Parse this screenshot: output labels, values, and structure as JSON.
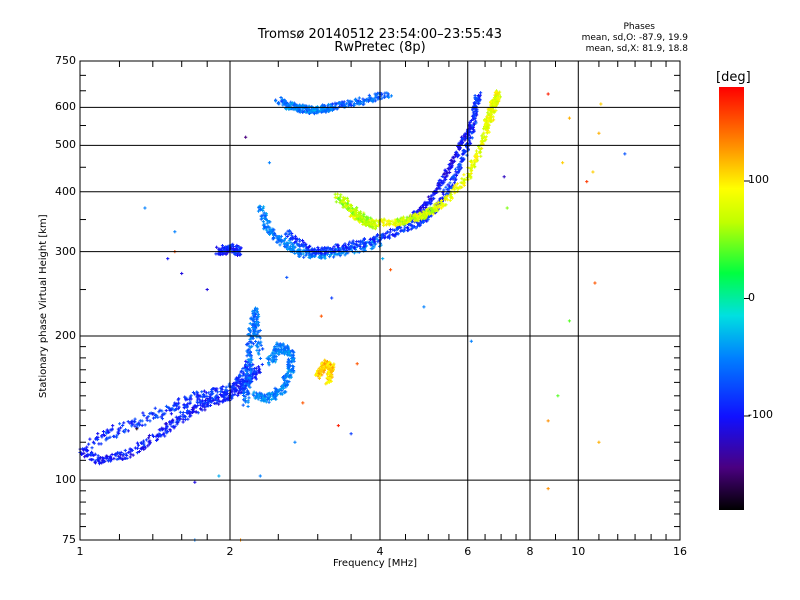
{
  "header": {
    "title_line1": "Tromsø 20140512 23:54:00–23:55:43",
    "title_line2": "RwPretec (8p)"
  },
  "phase_box": {
    "title": "Phases",
    "line_o": "mean, sd,O: -87.9, 19.9",
    "line_x": "mean, sd,X: 81.9, 18.8"
  },
  "colorbar": {
    "label": "[deg]",
    "ticks": [
      {
        "value": 100,
        "label": "100"
      },
      {
        "value": 0,
        "label": "0"
      },
      {
        "value": -100,
        "label": "-100"
      }
    ],
    "range": [
      -180,
      180
    ]
  },
  "chart_data": {
    "type": "scatter",
    "title": "Tromsø 20140512 23:54:00–23:55:43",
    "subtitle": "RwPretec (8p)",
    "xlabel": "Frequency [MHz]",
    "ylabel": "Stationary phase Virtual Height [km]",
    "x_scale": "log",
    "y_scale": "log",
    "xlim": [
      1,
      16
    ],
    "ylim": [
      75,
      750
    ],
    "grid": true,
    "x_ticks": [
      {
        "value": 1,
        "label": "1"
      },
      {
        "value": 2,
        "label": "2"
      },
      {
        "value": 4,
        "label": "4"
      },
      {
        "value": 6,
        "label": "6"
      },
      {
        "value": 8,
        "label": "8"
      },
      {
        "value": 10,
        "label": "10"
      },
      {
        "value": 16,
        "label": "16"
      }
    ],
    "y_ticks": [
      {
        "value": 75,
        "label": "75"
      },
      {
        "value": 100,
        "label": "100"
      },
      {
        "value": 200,
        "label": "200"
      },
      {
        "value": 300,
        "label": "300"
      },
      {
        "value": 400,
        "label": "400"
      },
      {
        "value": 500,
        "label": "500"
      },
      {
        "value": 600,
        "label": "600"
      },
      {
        "value": 750,
        "label": "750"
      }
    ],
    "color_by": "phase (deg)",
    "traces": [
      {
        "desc": "E/F1 low trace",
        "phase": -105,
        "spread": 0.03,
        "points": [
          [
            1.0,
            115
          ],
          [
            1.1,
            110
          ],
          [
            1.25,
            113
          ],
          [
            1.45,
            125
          ],
          [
            1.6,
            135
          ],
          [
            1.8,
            145
          ],
          [
            2.0,
            150
          ],
          [
            2.15,
            158
          ],
          [
            2.3,
            172
          ]
        ]
      },
      {
        "desc": "E/F1 upper band",
        "phase": -95,
        "spread": 0.04,
        "points": [
          [
            1.05,
            120
          ],
          [
            1.25,
            130
          ],
          [
            1.5,
            140
          ],
          [
            1.7,
            148
          ],
          [
            1.9,
            152
          ],
          [
            2.1,
            160
          ],
          [
            2.2,
            175
          ]
        ]
      },
      {
        "desc": "lower cusp column",
        "phase": -70,
        "spread": 0.03,
        "points": [
          [
            2.15,
            145
          ],
          [
            2.18,
            170
          ],
          [
            2.2,
            200
          ],
          [
            2.25,
            225
          ],
          [
            2.3,
            180
          ]
        ]
      },
      {
        "desc": "lower cusp hook",
        "phase": -60,
        "spread": 0.03,
        "points": [
          [
            2.25,
            150
          ],
          [
            2.4,
            148
          ],
          [
            2.55,
            155
          ],
          [
            2.65,
            170
          ],
          [
            2.65,
            185
          ],
          [
            2.5,
            190
          ],
          [
            2.4,
            175
          ]
        ]
      },
      {
        "desc": "lower X blob",
        "phase": 110,
        "spread": 0.025,
        "points": [
          [
            3.0,
            165
          ],
          [
            3.1,
            175
          ],
          [
            3.2,
            172
          ],
          [
            3.15,
            160
          ]
        ]
      },
      {
        "desc": "F2 O-trace lower arc",
        "phase": -60,
        "spread": 0.03,
        "points": [
          [
            2.3,
            370
          ],
          [
            2.4,
            330
          ],
          [
            2.6,
            310
          ],
          [
            2.8,
            298
          ],
          [
            3.1,
            296
          ],
          [
            3.5,
            302
          ],
          [
            4.0,
            315
          ]
        ]
      },
      {
        "desc": "F2 O-trace main",
        "phase": -95,
        "spread": 0.025,
        "points": [
          [
            2.6,
            330
          ],
          [
            2.9,
            300
          ],
          [
            3.3,
            305
          ],
          [
            3.8,
            315
          ],
          [
            4.3,
            330
          ],
          [
            4.8,
            345
          ],
          [
            5.2,
            370
          ],
          [
            5.6,
            420
          ],
          [
            6.0,
            500
          ],
          [
            6.2,
            580
          ],
          [
            6.3,
            640
          ]
        ]
      },
      {
        "desc": "F2 O-trace inner",
        "phase": -110,
        "spread": 0.02,
        "points": [
          [
            4.6,
            350
          ],
          [
            5.0,
            380
          ],
          [
            5.4,
            430
          ],
          [
            5.8,
            500
          ],
          [
            6.1,
            560
          ]
        ]
      },
      {
        "desc": "F2 cusp left",
        "phase": -100,
        "spread": 0.03,
        "points": [
          [
            1.9,
            300
          ],
          [
            2.0,
            305
          ],
          [
            2.1,
            300
          ]
        ]
      },
      {
        "desc": "F2 X-trace",
        "phase": 85,
        "spread": 0.025,
        "points": [
          [
            3.5,
            360
          ],
          [
            3.8,
            345
          ],
          [
            4.3,
            345
          ],
          [
            4.8,
            355
          ],
          [
            5.4,
            380
          ],
          [
            6.0,
            430
          ],
          [
            6.4,
            500
          ],
          [
            6.7,
            580
          ],
          [
            6.9,
            640
          ],
          [
            6.7,
            600
          ],
          [
            6.5,
            540
          ]
        ]
      },
      {
        "desc": "F2 X cusp",
        "phase": 60,
        "spread": 0.03,
        "points": [
          [
            3.3,
            390
          ],
          [
            3.5,
            370
          ],
          [
            3.7,
            350
          ],
          [
            3.9,
            340
          ]
        ]
      },
      {
        "desc": "F2 X lower",
        "phase": 70,
        "spread": 0.025,
        "points": [
          [
            4.3,
            345
          ],
          [
            4.8,
            355
          ],
          [
            5.2,
            370
          ]
        ]
      },
      {
        "desc": "top spread F",
        "phase": -75,
        "spread": 0.025,
        "points": [
          [
            2.5,
            620
          ],
          [
            2.7,
            600
          ],
          [
            3.0,
            590
          ],
          [
            3.3,
            605
          ],
          [
            3.7,
            620
          ],
          [
            4.2,
            640
          ]
        ]
      },
      {
        "desc": "top spread F2",
        "phase": -55,
        "spread": 0.025,
        "points": [
          [
            2.6,
            605
          ],
          [
            2.9,
            595
          ],
          [
            3.2,
            600
          ]
        ]
      }
    ],
    "scatter_points": [
      {
        "x": 1.35,
        "y": 370,
        "phase": -60
      },
      {
        "x": 1.55,
        "y": 330,
        "phase": -60
      },
      {
        "x": 1.5,
        "y": 290,
        "phase": -110
      },
      {
        "x": 1.6,
        "y": 270,
        "phase": -120
      },
      {
        "x": 1.55,
        "y": 300,
        "phase": 150
      },
      {
        "x": 1.8,
        "y": 250,
        "phase": -120
      },
      {
        "x": 2.15,
        "y": 520,
        "phase": -150
      },
      {
        "x": 2.4,
        "y": 460,
        "phase": -60
      },
      {
        "x": 2.6,
        "y": 265,
        "phase": -80
      },
      {
        "x": 3.05,
        "y": 220,
        "phase": 150
      },
      {
        "x": 3.2,
        "y": 240,
        "phase": -90
      },
      {
        "x": 3.6,
        "y": 175,
        "phase": 150
      },
      {
        "x": 4.2,
        "y": 275,
        "phase": 150
      },
      {
        "x": 4.05,
        "y": 290,
        "phase": -40
      },
      {
        "x": 4.9,
        "y": 230,
        "phase": -60
      },
      {
        "x": 6.1,
        "y": 195,
        "phase": -60
      },
      {
        "x": 7.2,
        "y": 370,
        "phase": 50
      },
      {
        "x": 7.1,
        "y": 430,
        "phase": -130
      },
      {
        "x": 8.7,
        "y": 640,
        "phase": 170
      },
      {
        "x": 9.3,
        "y": 460,
        "phase": 110
      },
      {
        "x": 9.6,
        "y": 570,
        "phase": 120
      },
      {
        "x": 11.1,
        "y": 610,
        "phase": 110
      },
      {
        "x": 11.0,
        "y": 530,
        "phase": 120
      },
      {
        "x": 10.4,
        "y": 420,
        "phase": 160
      },
      {
        "x": 10.7,
        "y": 440,
        "phase": 110
      },
      {
        "x": 12.4,
        "y": 480,
        "phase": -80
      },
      {
        "x": 9.6,
        "y": 215,
        "phase": 40
      },
      {
        "x": 10.8,
        "y": 258,
        "phase": 150
      },
      {
        "x": 8.7,
        "y": 133,
        "phase": 130
      },
      {
        "x": 11.0,
        "y": 120,
        "phase": 120
      },
      {
        "x": 8.7,
        "y": 96,
        "phase": 130
      },
      {
        "x": 9.1,
        "y": 150,
        "phase": 40
      },
      {
        "x": 2.3,
        "y": 102,
        "phase": -60
      },
      {
        "x": 1.7,
        "y": 99,
        "phase": -120
      },
      {
        "x": 1.3,
        "y": 128,
        "phase": -170
      },
      {
        "x": 1.9,
        "y": 102,
        "phase": -40
      },
      {
        "x": 2.7,
        "y": 120,
        "phase": -60
      },
      {
        "x": 3.3,
        "y": 130,
        "phase": 170
      },
      {
        "x": 2.1,
        "y": 75,
        "phase": 130
      },
      {
        "x": 1.7,
        "y": 75,
        "phase": -60
      },
      {
        "x": 3.5,
        "y": 125,
        "phase": -90
      },
      {
        "x": 2.8,
        "y": 145,
        "phase": 150
      }
    ]
  }
}
